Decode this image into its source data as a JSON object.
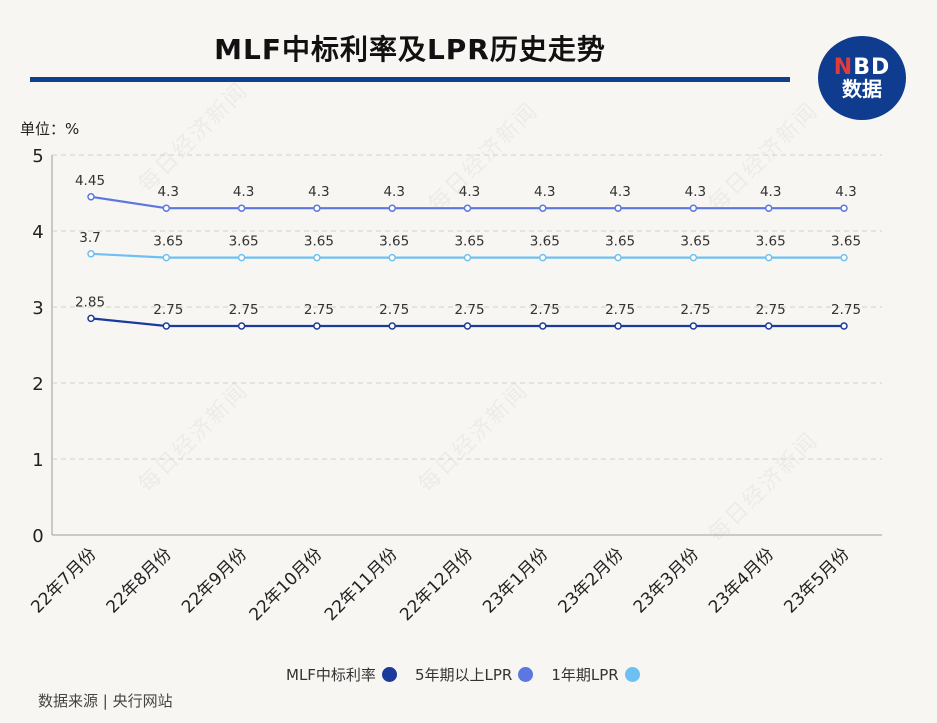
{
  "header": {
    "title": "MLF中标利率及LPR历史走势",
    "logo_line1_accent": "N",
    "logo_line1_rest": "BD",
    "logo_line2": "数据"
  },
  "unit_label": "单位：%",
  "watermark_text": "每日经济新闻",
  "source": "数据来源 | 央行网站",
  "chart_data": {
    "type": "line",
    "categories": [
      "22年7月份",
      "22年8月份",
      "22年9月份",
      "22年10月份",
      "22年11月份",
      "22年12月份",
      "23年1月份",
      "23年2月份",
      "23年3月份",
      "23年4月份",
      "23年5月份"
    ],
    "ylim": [
      0,
      5
    ],
    "yticks": [
      0,
      1,
      2,
      3,
      4,
      5
    ],
    "grid": true,
    "legend_position": "bottom",
    "series": [
      {
        "name": "MLF中标利率",
        "color": "#1a3a9c",
        "values": [
          2.85,
          2.75,
          2.75,
          2.75,
          2.75,
          2.75,
          2.75,
          2.75,
          2.75,
          2.75,
          2.75
        ],
        "labels": [
          "2.85",
          "2.75",
          "2.75",
          "2.75",
          "2.75",
          "2.75",
          "2.75",
          "2.75",
          "2.75",
          "2.75",
          "2.75"
        ]
      },
      {
        "name": "5年期以上LPR",
        "color": "#5b78e0",
        "values": [
          4.45,
          4.3,
          4.3,
          4.3,
          4.3,
          4.3,
          4.3,
          4.3,
          4.3,
          4.3,
          4.3
        ],
        "labels": [
          "4.45",
          "4.3",
          "4.3",
          "4.3",
          "4.3",
          "4.3",
          "4.3",
          "4.3",
          "4.3",
          "4.3",
          "4.3"
        ]
      },
      {
        "name": "1年期LPR",
        "color": "#6ec0f2",
        "values": [
          3.7,
          3.65,
          3.65,
          3.65,
          3.65,
          3.65,
          3.65,
          3.65,
          3.65,
          3.65,
          3.65
        ],
        "labels": [
          "3.7",
          "3.65",
          "3.65",
          "3.65",
          "3.65",
          "3.65",
          "3.65",
          "3.65",
          "3.65",
          "3.65",
          "3.65"
        ]
      }
    ]
  }
}
